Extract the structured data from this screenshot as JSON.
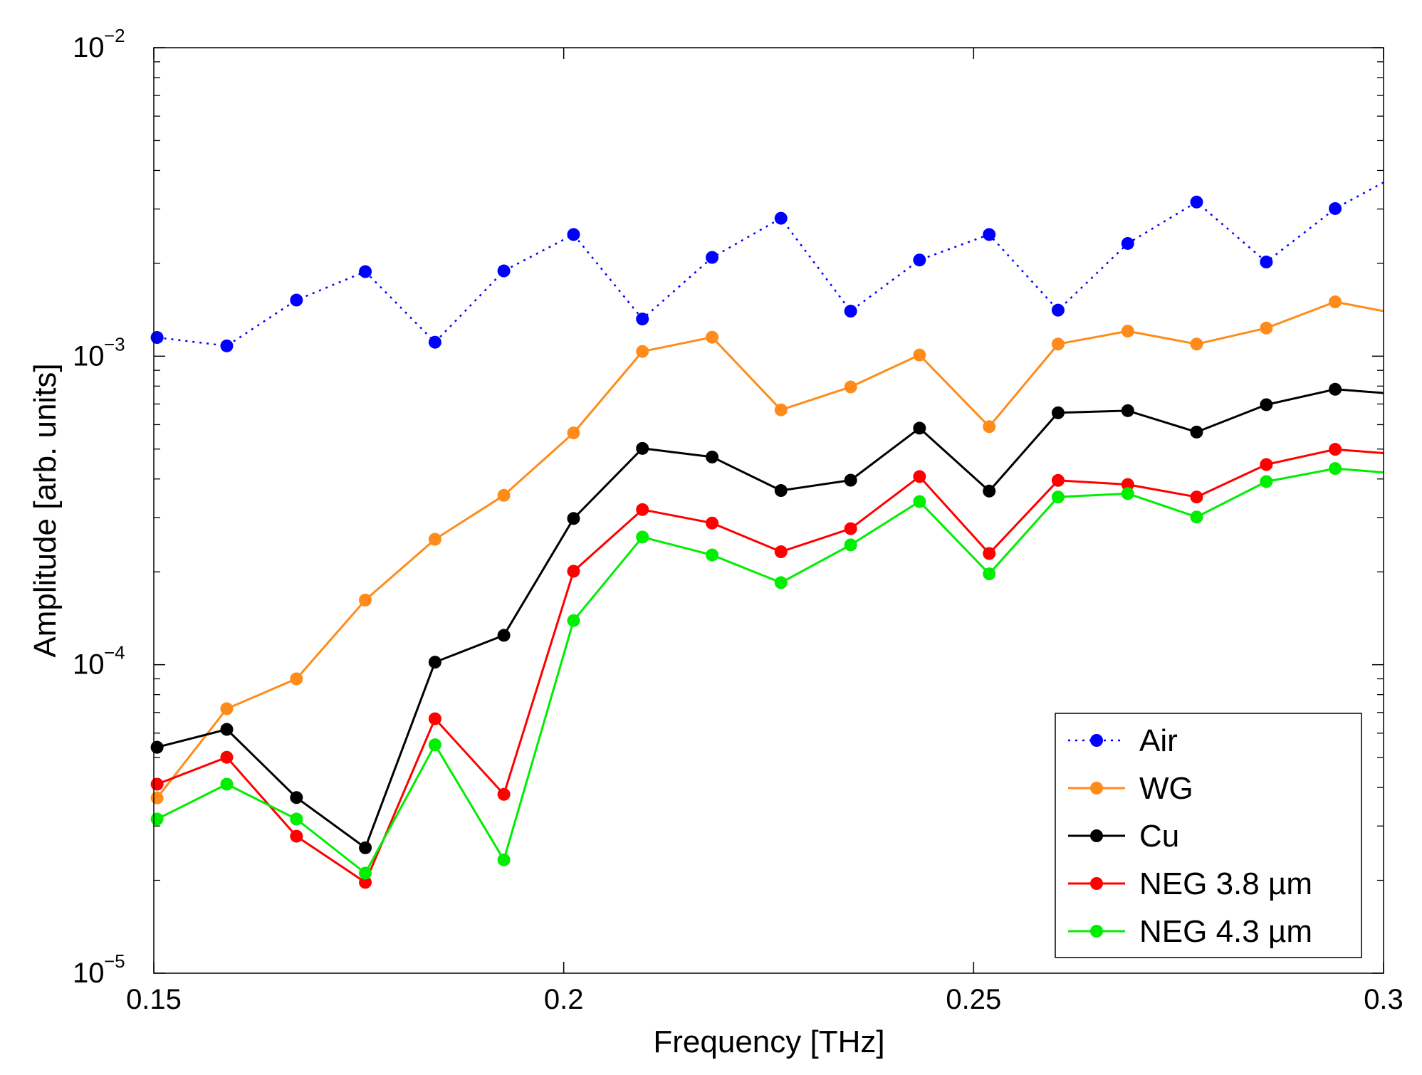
{
  "chart_data": {
    "type": "line",
    "yscale": "log",
    "xlabel": "Frequency [THz]",
    "ylabel": "Amplitude [arb. units]",
    "xlim": [
      0.15,
      0.3
    ],
    "ylim": [
      1e-05,
      0.01
    ],
    "xticks": [
      0.15,
      0.2,
      0.25,
      0.3
    ],
    "xtick_labels": [
      "0.15",
      "0.2",
      "0.25",
      "0.3"
    ],
    "yticks": [
      {
        "value": 1e-05,
        "base": "10",
        "exp": "−5"
      },
      {
        "value": 0.0001,
        "base": "10",
        "exp": "−4"
      },
      {
        "value": 0.001,
        "base": "10",
        "exp": "−3"
      },
      {
        "value": 0.01,
        "base": "10",
        "exp": "−2"
      }
    ],
    "legend_position": "bottom-right",
    "x": [
      0.1504,
      0.1589,
      0.1674,
      0.1758,
      0.1843,
      0.1927,
      0.2012,
      0.2096,
      0.2181,
      0.2265,
      0.235,
      0.2434,
      0.2519,
      0.2603,
      0.2688,
      0.2772,
      0.2857,
      0.2941,
      0.3
    ],
    "series": [
      {
        "name": "Air",
        "color": "#0000ff",
        "style": "dotted",
        "values": [
          0.00115,
          0.00108,
          0.00152,
          0.00188,
          0.00111,
          0.00189,
          0.00248,
          0.00132,
          0.00209,
          0.0028,
          0.0014,
          0.00205,
          0.00248,
          0.00141,
          0.00232,
          0.00316,
          0.00202,
          0.00301,
          0.00366
        ]
      },
      {
        "name": "WG",
        "color": "#ff8c1a",
        "style": "solid",
        "values": [
          3.7e-05,
          7.2e-05,
          9e-05,
          0.000162,
          0.000255,
          0.000354,
          0.000564,
          0.001036,
          0.001152,
          0.00067,
          0.000795,
          0.001009,
          0.000591,
          0.001095,
          0.001206,
          0.001095,
          0.001234,
          0.0015,
          0.0014
        ]
      },
      {
        "name": "Cu",
        "color": "#000000",
        "style": "solid",
        "values": [
          5.4e-05,
          6.17e-05,
          3.71e-05,
          2.55e-05,
          0.0001019,
          0.0001245,
          0.0002978,
          0.0005025,
          0.0004712,
          0.0003669,
          0.0003963,
          0.0005845,
          0.0003654,
          0.0006555,
          0.0006659,
          0.0005677,
          0.0006962,
          0.0007813,
          0.00076
        ]
      },
      {
        "name": "NEG 3.8 µm",
        "color": "#ff0000",
        "style": "solid",
        "values": [
          4.1e-05,
          5.01e-05,
          2.78e-05,
          1.97e-05,
          6.68e-05,
          3.8e-05,
          0.0002009,
          0.0003183,
          0.0002878,
          0.0002323,
          0.000276,
          0.0004072,
          0.0002293,
          0.0003958,
          0.0003837,
          0.0003496,
          0.0004454,
          0.000499,
          0.000485
        ]
      },
      {
        "name": "NEG 4.3 µm",
        "color": "#00ee00",
        "style": "solid",
        "values": [
          3.16e-05,
          4.1e-05,
          3.16e-05,
          2.11e-05,
          5.5e-05,
          2.33e-05,
          0.000139,
          0.0002593,
          0.0002268,
          0.0001845,
          0.0002445,
          0.0003379,
          0.000197,
          0.0003496,
          0.0003586,
          0.0003011,
          0.0003922,
          0.0004324,
          0.00042
        ]
      }
    ]
  }
}
